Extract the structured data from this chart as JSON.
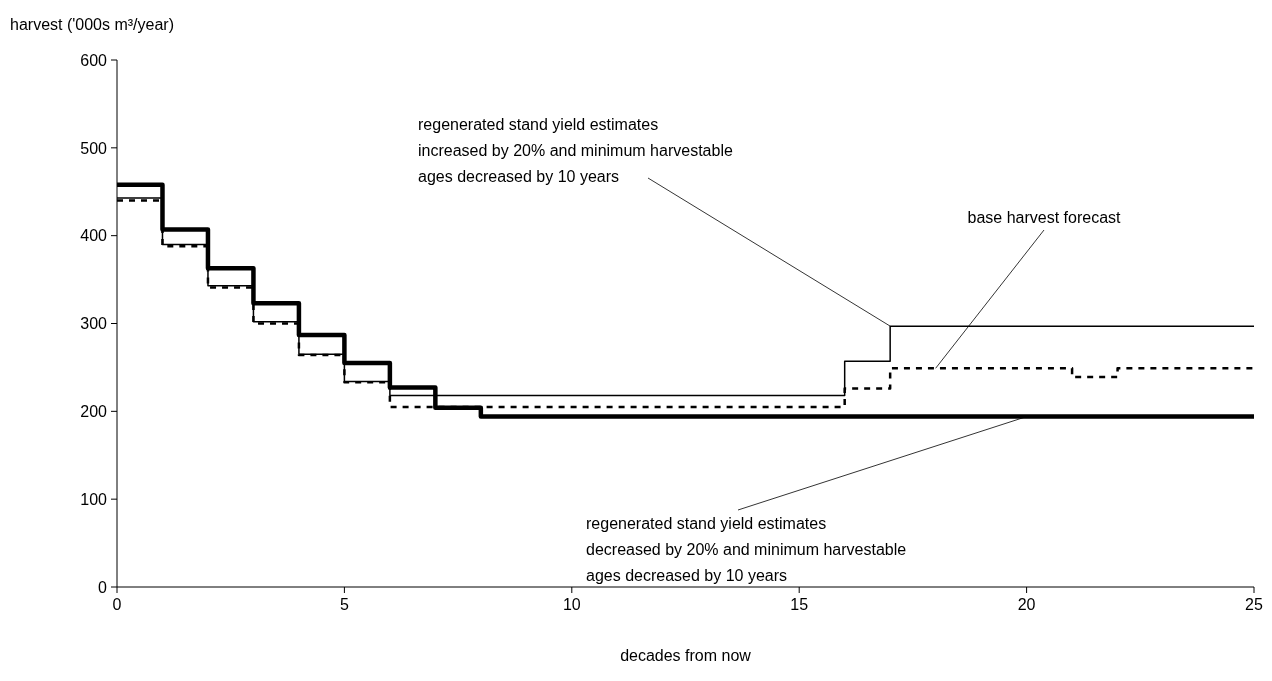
{
  "chart_data": {
    "type": "step",
    "ylabel": "harvest ('000s m³/year)",
    "xlabel": "decades from now",
    "x": [
      0,
      1,
      2,
      3,
      4,
      5,
      6,
      7,
      8,
      9,
      10,
      11,
      12,
      13,
      14,
      15,
      16,
      17,
      18,
      19,
      20,
      21,
      22,
      23,
      24,
      25
    ],
    "series": [
      {
        "color": "#000000",
        "line_style": "solid",
        "values": [
          443,
          390,
          343,
          302,
          265,
          234,
          218,
          218,
          218,
          218,
          218,
          218,
          218,
          218,
          218,
          218,
          257,
          297,
          297,
          297,
          297,
          297,
          297,
          297,
          297,
          297
        ]
      },
      {
        "color": "#000000",
        "line_style": "dashed",
        "values": [
          440,
          388,
          341,
          300,
          264,
          233,
          205,
          205,
          205,
          205,
          205,
          205,
          205,
          205,
          205,
          205,
          226,
          249,
          249,
          249,
          249,
          239,
          249,
          249,
          249,
          249
        ]
      },
      {
        "color": "#000000",
        "line_style": "solid",
        "values": [
          458,
          407,
          363,
          323,
          287,
          255,
          227,
          204,
          194,
          194,
          194,
          194,
          194,
          194,
          194,
          194,
          194,
          194,
          194,
          194,
          194,
          194,
          194,
          194,
          194,
          194
        ]
      }
    ],
    "xlim": [
      0,
      25
    ],
    "xticks": [
      0,
      5,
      10,
      15,
      20,
      25
    ],
    "ylim": [
      0,
      600
    ],
    "yticks": [
      0,
      100,
      200,
      300,
      400,
      500,
      600
    ],
    "grid": false,
    "marker": "none",
    "annotations": [
      {
        "text": "regenerated stand yield estimates\nincreased by 20% and minimum harvestable\nages decreased by 10 years",
        "x": 17,
        "y": 297
      },
      {
        "text": "base harvest forecast",
        "x": 18,
        "y": 249
      },
      {
        "text": "regenerated stand yield estimates\ndecreased by 20% and minimum harvestable\nages decreased by 10 years",
        "x": 20,
        "y": 194
      }
    ]
  }
}
